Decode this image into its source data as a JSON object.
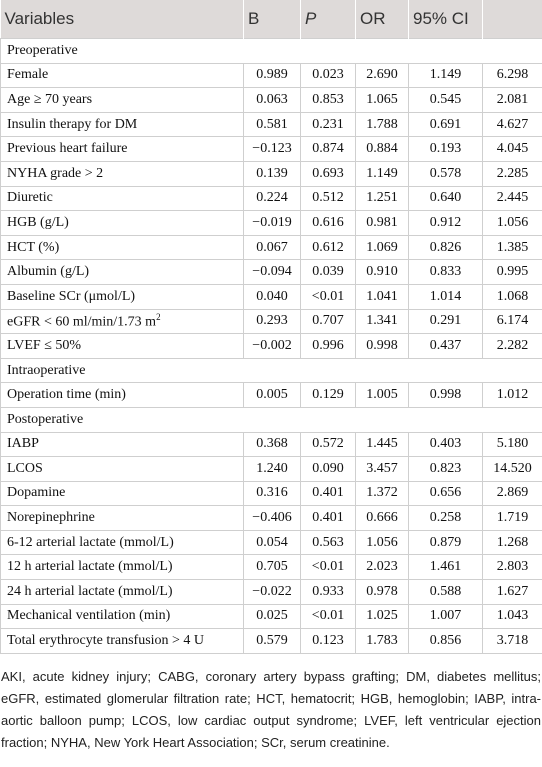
{
  "table": {
    "header": [
      "Variables",
      "B",
      "P",
      "OR",
      "95% CI"
    ],
    "sections": [
      {
        "name": "Preoperative",
        "rows": [
          {
            "label": "Female",
            "cells": [
              "0.989",
              "0.023",
              "2.690",
              "1.149",
              "6.298"
            ]
          },
          {
            "label": "Age ≥ 70 years",
            "cells": [
              "0.063",
              "0.853",
              "1.065",
              "0.545",
              "2.081"
            ]
          },
          {
            "label": "Insulin therapy for DM",
            "cells": [
              "0.581",
              "0.231",
              "1.788",
              "0.691",
              "4.627"
            ]
          },
          {
            "label": "Previous heart failure",
            "cells": [
              "−0.123",
              "0.874",
              "0.884",
              "0.193",
              "4.045"
            ]
          },
          {
            "label": "NYHA grade > 2",
            "cells": [
              "0.139",
              "0.693",
              "1.149",
              "0.578",
              "2.285"
            ]
          },
          {
            "label": "Diuretic",
            "cells": [
              "0.224",
              "0.512",
              "1.251",
              "0.640",
              "2.445"
            ]
          },
          {
            "label": "HGB (g/L)",
            "cells": [
              "−0.019",
              "0.616",
              "0.981",
              "0.912",
              "1.056"
            ]
          },
          {
            "label": "HCT (%)",
            "cells": [
              "0.067",
              "0.612",
              "1.069",
              "0.826",
              "1.385"
            ]
          },
          {
            "label": "Albumin (g/L)",
            "cells": [
              "−0.094",
              "0.039",
              "0.910",
              "0.833",
              "0.995"
            ]
          },
          {
            "label": "Baseline SCr (μmol/L)",
            "cells": [
              "0.040",
              "<0.01",
              "1.041",
              "1.014",
              "1.068"
            ]
          },
          {
            "label": "eGFR < 60 ml/min/1.73 m",
            "sup": "2",
            "cells": [
              "0.293",
              "0.707",
              "1.341",
              "0.291",
              "6.174"
            ]
          },
          {
            "label": "LVEF ≤ 50%",
            "cells": [
              "−0.002",
              "0.996",
              "0.998",
              "0.437",
              "2.282"
            ]
          }
        ]
      },
      {
        "name": "Intraoperative",
        "rows": [
          {
            "label": "Operation time (min)",
            "cells": [
              "0.005",
              "0.129",
              "1.005",
              "0.998",
              "1.012"
            ]
          }
        ]
      },
      {
        "name": "Postoperative",
        "rows": [
          {
            "label": "IABP",
            "cells": [
              "0.368",
              "0.572",
              "1.445",
              "0.403",
              "5.180"
            ]
          },
          {
            "label": "LCOS",
            "cells": [
              "1.240",
              "0.090",
              "3.457",
              "0.823",
              "14.520"
            ]
          },
          {
            "label": "Dopamine",
            "cells": [
              "0.316",
              "0.401",
              "1.372",
              "0.656",
              "2.869"
            ]
          },
          {
            "label": "Norepinephrine",
            "cells": [
              "−0.406",
              "0.401",
              "0.666",
              "0.258",
              "1.719"
            ]
          },
          {
            "label": "6-12 arterial lactate (mmol/L)",
            "cells": [
              "0.054",
              "0.563",
              "1.056",
              "0.879",
              "1.268"
            ]
          },
          {
            "label": "12 h arterial lactate (mmol/L)",
            "cells": [
              "0.705",
              "<0.01",
              "2.023",
              "1.461",
              "2.803"
            ]
          },
          {
            "label": "24 h arterial lactate (mmol/L)",
            "cells": [
              "−0.022",
              "0.933",
              "0.978",
              "0.588",
              "1.627"
            ]
          },
          {
            "label": "Mechanical ventilation (min)",
            "cells": [
              "0.025",
              "<0.01",
              "1.025",
              "1.007",
              "1.043"
            ]
          },
          {
            "label": "Total erythrocyte transfusion > 4 U",
            "cells": [
              "0.579",
              "0.123",
              "1.783",
              "0.856",
              "3.718"
            ]
          }
        ]
      }
    ]
  },
  "footnote": "AKI, acute kidney injury; CABG, coronary artery bypass grafting; DM, diabetes mellitus; eGFR, estimated glomerular filtration rate; HCT, hematocrit; HGB, hemoglobin; IABP, intra-aortic balloon pump; LCOS, low cardiac output syndrome; LVEF, left ventricular ejection fraction; NYHA, New York Heart Association; SCr, serum creatinine."
}
